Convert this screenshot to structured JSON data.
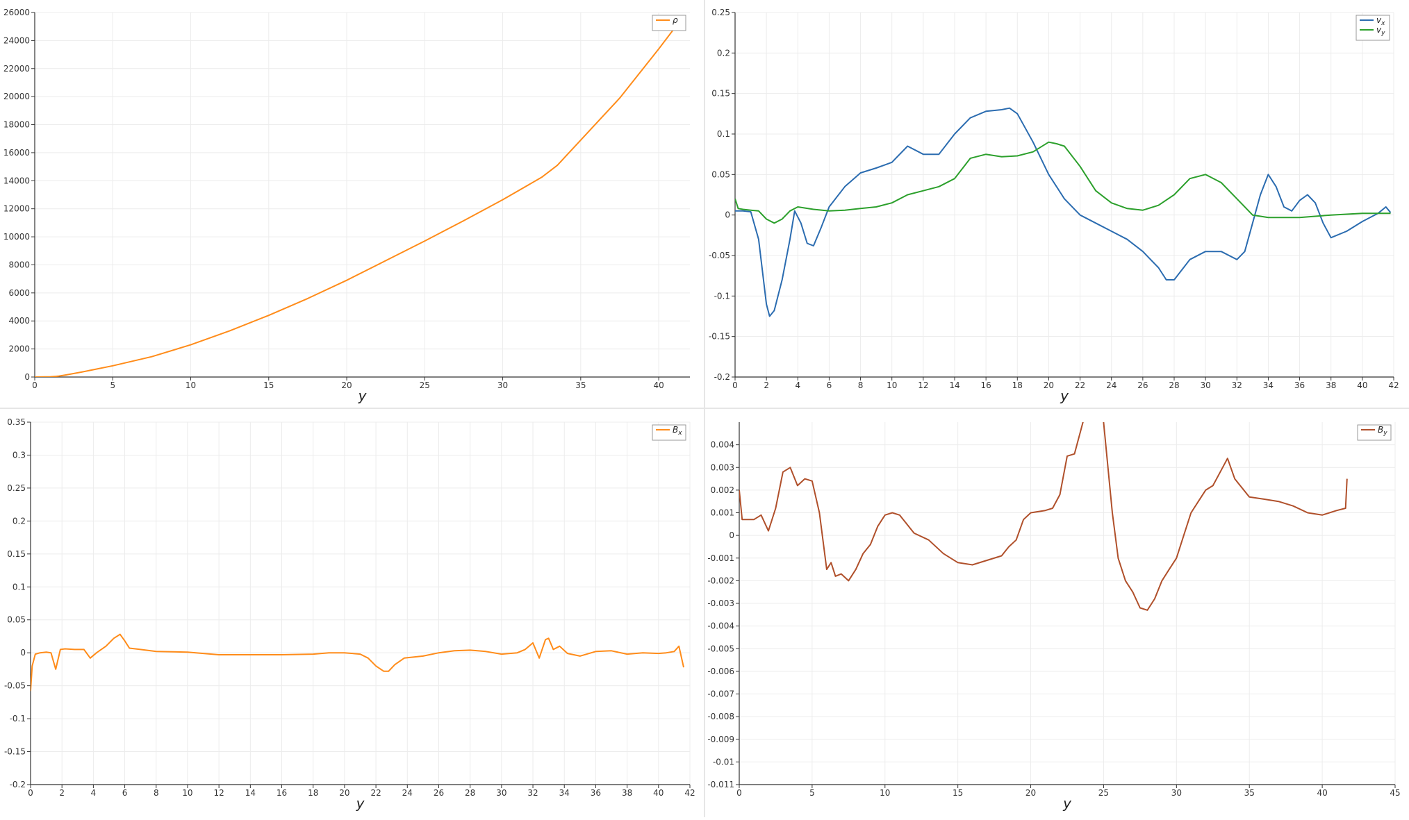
{
  "charts": [
    {
      "type": "line",
      "xlabel": "y",
      "xlim": [
        0,
        42
      ],
      "ylim": [
        0,
        26000
      ],
      "xticks": [
        0,
        5,
        10,
        15,
        20,
        25,
        30,
        35,
        40
      ],
      "yticks": [
        0,
        2000,
        4000,
        6000,
        8000,
        10000,
        12000,
        14000,
        16000,
        18000,
        20000,
        22000,
        24000,
        26000
      ],
      "legend": "top-right",
      "series": [
        {
          "name": "ρ",
          "color": "#ff8c1a",
          "x": [
            0,
            1,
            1.5,
            2,
            3,
            5,
            7.5,
            10,
            12.5,
            15,
            17.5,
            20,
            22.5,
            25,
            27.5,
            30,
            32.5,
            33.5,
            35,
            37.5,
            40,
            41.5
          ],
          "y": [
            0,
            20,
            60,
            150,
            350,
            800,
            1450,
            2300,
            3300,
            4400,
            5600,
            6900,
            8300,
            9700,
            11150,
            12650,
            14250,
            15100,
            16900,
            19900,
            23400,
            25600
          ]
        }
      ]
    },
    {
      "type": "line",
      "xlabel": "y",
      "xlim": [
        0,
        42
      ],
      "ylim": [
        -0.2,
        0.25
      ],
      "xticks": [
        0,
        2,
        4,
        6,
        8,
        10,
        12,
        14,
        16,
        18,
        20,
        22,
        24,
        26,
        28,
        30,
        32,
        34,
        36,
        38,
        40,
        42
      ],
      "yticks": [
        -0.2,
        -0.15,
        -0.1,
        -0.05,
        0,
        0.05,
        0.1,
        0.15,
        0.2,
        0.25
      ],
      "legend": "top-right",
      "series": [
        {
          "name": "vx",
          "color": "#2b6cb0",
          "x": [
            0,
            0.5,
            1,
            1.5,
            2,
            2.2,
            2.5,
            3,
            3.5,
            3.8,
            4.2,
            4.6,
            5,
            5.5,
            6,
            7,
            8,
            9,
            10,
            11,
            12,
            13,
            14,
            15,
            16,
            17,
            17.5,
            18,
            19,
            20,
            21,
            22,
            23,
            24,
            25,
            26,
            27,
            27.5,
            28,
            29,
            30,
            31,
            32,
            32.5,
            33,
            33.5,
            34,
            34.5,
            35,
            35.5,
            36,
            36.5,
            37,
            37.5,
            38,
            39,
            40,
            41,
            41.5,
            41.8
          ],
          "y": [
            0.005,
            0.005,
            0.004,
            -0.03,
            -0.11,
            -0.125,
            -0.118,
            -0.08,
            -0.03,
            0.005,
            -0.01,
            -0.035,
            -0.038,
            -0.015,
            0.01,
            0.035,
            0.052,
            0.058,
            0.065,
            0.085,
            0.075,
            0.075,
            0.1,
            0.12,
            0.128,
            0.13,
            0.132,
            0.125,
            0.09,
            0.05,
            0.02,
            0.0,
            -0.01,
            -0.02,
            -0.03,
            -0.045,
            -0.065,
            -0.08,
            -0.08,
            -0.055,
            -0.045,
            -0.045,
            -0.055,
            -0.045,
            -0.01,
            0.025,
            0.05,
            0.035,
            0.01,
            0.005,
            0.018,
            0.025,
            0.015,
            -0.01,
            -0.028,
            -0.02,
            -0.008,
            0.002,
            0.01,
            0.003
          ]
        },
        {
          "name": "vy",
          "color": "#2ca02c",
          "x": [
            0,
            0.2,
            0.5,
            1,
            1.5,
            2,
            2.5,
            3,
            3.5,
            4,
            5,
            6,
            7,
            8,
            9,
            10,
            11,
            12,
            13,
            14,
            15,
            16,
            17,
            18,
            19,
            20,
            20.5,
            21,
            22,
            23,
            24,
            25,
            26,
            27,
            28,
            29,
            30,
            31,
            32,
            33,
            34,
            36,
            38,
            40,
            41.8
          ],
          "y": [
            0.02,
            0.008,
            0.007,
            0.006,
            0.005,
            -0.005,
            -0.01,
            -0.005,
            0.005,
            0.01,
            0.007,
            0.005,
            0.006,
            0.008,
            0.01,
            0.015,
            0.025,
            0.03,
            0.035,
            0.045,
            0.07,
            0.075,
            0.072,
            0.073,
            0.078,
            0.09,
            0.088,
            0.085,
            0.06,
            0.03,
            0.015,
            0.008,
            0.006,
            0.012,
            0.025,
            0.045,
            0.05,
            0.04,
            0.02,
            0.0,
            -0.003,
            -0.003,
            0.0,
            0.002,
            0.002
          ]
        }
      ]
    },
    {
      "type": "line",
      "xlabel": "y",
      "xlim": [
        0,
        42
      ],
      "ylim": [
        -0.2,
        0.35
      ],
      "xticks": [
        0,
        2,
        4,
        6,
        8,
        10,
        12,
        14,
        16,
        18,
        20,
        22,
        24,
        26,
        28,
        30,
        32,
        34,
        36,
        38,
        40,
        42
      ],
      "yticks": [
        -0.2,
        -0.15,
        -0.1,
        -0.05,
        0,
        0.05,
        0.1,
        0.15,
        0.2,
        0.25,
        0.3,
        0.35
      ],
      "legend": "top-right",
      "series": [
        {
          "name": "Bx",
          "color": "#ff8c1a",
          "x": [
            0,
            0.1,
            0.3,
            0.6,
            1,
            1.3,
            1.6,
            1.9,
            2.2,
            2.8,
            3.4,
            3.8,
            4.2,
            4.8,
            5.3,
            5.7,
            6,
            6.3,
            7,
            8,
            10,
            12,
            14,
            16,
            18,
            19,
            20,
            21,
            21.5,
            22,
            22.5,
            22.8,
            23.2,
            23.8,
            25,
            26,
            27,
            28,
            29,
            30,
            31,
            31.5,
            32,
            32.4,
            32.8,
            33,
            33.3,
            33.7,
            34.2,
            35,
            36,
            37,
            38,
            39,
            40,
            40.5,
            41,
            41.3,
            41.6
          ],
          "y": [
            -0.058,
            -0.02,
            -0.002,
            0.0,
            0.001,
            0.0,
            -0.025,
            0.005,
            0.006,
            0.005,
            0.005,
            -0.008,
            0.0,
            0.01,
            0.022,
            0.028,
            0.018,
            0.007,
            0.005,
            0.002,
            0.001,
            -0.003,
            -0.003,
            -0.003,
            -0.002,
            0.0,
            0.0,
            -0.002,
            -0.008,
            -0.02,
            -0.028,
            -0.028,
            -0.018,
            -0.008,
            -0.005,
            0.0,
            0.003,
            0.004,
            0.002,
            -0.002,
            0.0,
            0.005,
            0.015,
            -0.008,
            0.02,
            0.022,
            0.005,
            0.01,
            -0.001,
            -0.005,
            0.002,
            0.003,
            -0.002,
            0.0,
            -0.001,
            0.0,
            0.002,
            0.01,
            -0.022
          ]
        }
      ]
    },
    {
      "type": "line",
      "xlabel": "y",
      "xlim": [
        0,
        45
      ],
      "ylim": [
        -0.011,
        0.005
      ],
      "xticks": [
        0,
        5,
        10,
        15,
        20,
        25,
        30,
        35,
        40,
        45
      ],
      "yticks": [
        -0.011,
        -0.01,
        -0.009,
        -0.008,
        -0.007,
        -0.006,
        -0.005,
        -0.004,
        -0.003,
        -0.002,
        -0.001,
        0,
        0.001,
        0.002,
        0.003,
        0.004
      ],
      "legend": "top-right",
      "series": [
        {
          "name": "By",
          "color": "#b0502b",
          "x": [
            0,
            0.2,
            0.5,
            1,
            1.5,
            2,
            2.5,
            3,
            3.5,
            4,
            4.5,
            5,
            5.5,
            6,
            6.3,
            6.6,
            7,
            7.5,
            8,
            8.5,
            9,
            9.5,
            10,
            10.5,
            11,
            12,
            13,
            14,
            15,
            16,
            17,
            18,
            18.5,
            19,
            19.5,
            20,
            21,
            21.5,
            22,
            22.5,
            23,
            23.5,
            24,
            24.5,
            25,
            25.3,
            25.6,
            26,
            26.5,
            27,
            27.5,
            28,
            28.5,
            29,
            29.5,
            30,
            30.5,
            31,
            31.5,
            32,
            32.5,
            33,
            33.5,
            34,
            35,
            36,
            37,
            38,
            39,
            40,
            41,
            41.6,
            41.7
          ],
          "y": [
            0.002,
            0.0007,
            0.0007,
            0.0007,
            0.0009,
            0.0002,
            0.0012,
            0.0028,
            0.003,
            0.0022,
            0.0025,
            0.0024,
            0.001,
            -0.0015,
            -0.0012,
            -0.0018,
            -0.0017,
            -0.002,
            -0.0015,
            -0.0008,
            -0.0004,
            0.0004,
            0.0009,
            0.001,
            0.0009,
            0.0001,
            -0.0002,
            -0.0008,
            -0.0012,
            -0.0013,
            -0.0011,
            -0.0009,
            -0.0005,
            -0.0002,
            0.0007,
            0.001,
            0.0011,
            0.0012,
            0.0018,
            0.0035,
            0.0036,
            0.0048,
            0.006,
            0.0065,
            0.005,
            0.003,
            0.001,
            -0.001,
            -0.002,
            -0.0025,
            -0.0032,
            -0.0033,
            -0.0028,
            -0.002,
            -0.0015,
            -0.001,
            0.0,
            0.001,
            0.0015,
            0.002,
            0.0022,
            0.0028,
            0.0034,
            0.0025,
            0.0017,
            0.0016,
            0.0015,
            0.0013,
            0.001,
            0.0009,
            0.0011,
            0.0012,
            0.0025
          ]
        }
      ]
    }
  ]
}
